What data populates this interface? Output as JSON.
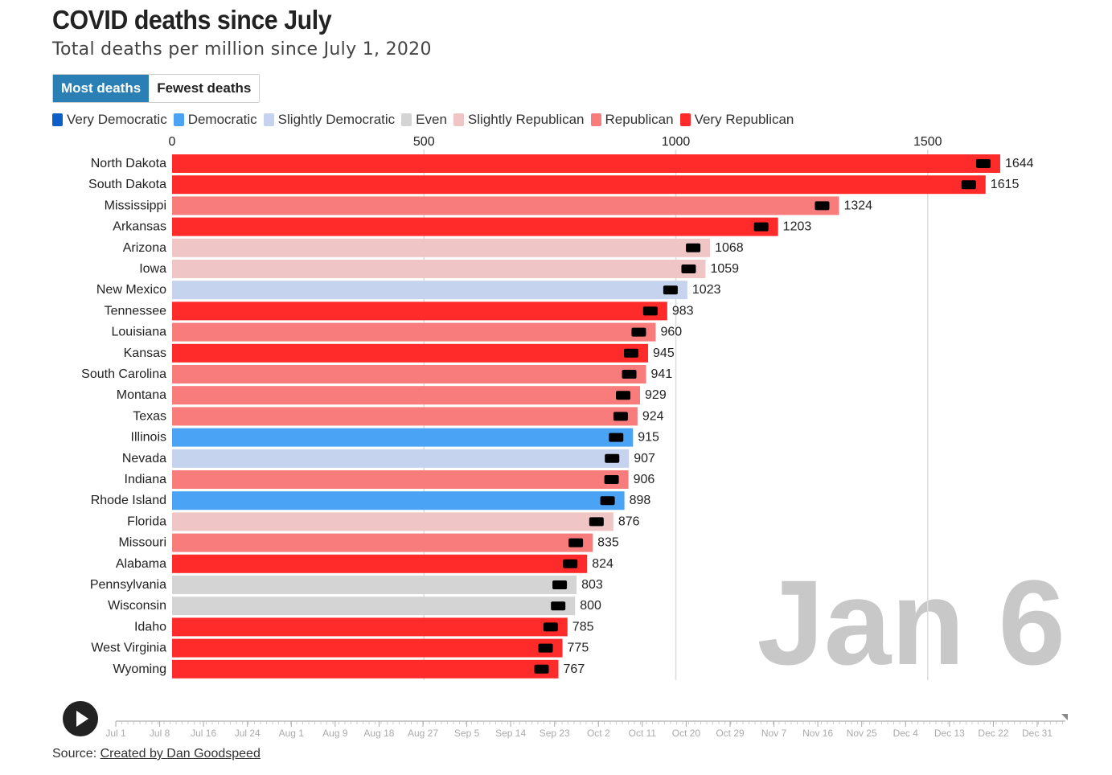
{
  "header": {
    "title": "COVID deaths since July",
    "subtitle": "Total deaths per million since July 1, 2020"
  },
  "toggle": {
    "most_label": "Most deaths",
    "fewest_label": "Fewest deaths",
    "active": "most"
  },
  "legend": [
    {
      "label": "Very Democratic",
      "color": "#0b5fc7"
    },
    {
      "label": "Democratic",
      "color": "#4aa3f5"
    },
    {
      "label": "Slightly Democratic",
      "color": "#c5d3ef"
    },
    {
      "label": "Even",
      "color": "#d4d4d4"
    },
    {
      "label": "Slightly Republican",
      "color": "#efc5c5"
    },
    {
      "label": "Republican",
      "color": "#f87c7c"
    },
    {
      "label": "Very Republican",
      "color": "#ff2a2a"
    }
  ],
  "chart_data": {
    "type": "bar",
    "orientation": "horizontal",
    "xlim": [
      0,
      1750
    ],
    "x_ticks": [
      0,
      500,
      1000,
      1500
    ],
    "grid": true,
    "date_label": "Jan 6",
    "categories": [
      "North Dakota",
      "South Dakota",
      "Mississippi",
      "Arkansas",
      "Arizona",
      "Iowa",
      "New Mexico",
      "Tennessee",
      "Louisiana",
      "Kansas",
      "South Carolina",
      "Montana",
      "Texas",
      "Illinois",
      "Nevada",
      "Indiana",
      "Rhode Island",
      "Florida",
      "Missouri",
      "Alabama",
      "Pennsylvania",
      "Wisconsin",
      "Idaho",
      "West Virginia",
      "Wyoming"
    ],
    "values": [
      1644,
      1615,
      1324,
      1203,
      1068,
      1059,
      1023,
      983,
      960,
      945,
      941,
      929,
      924,
      915,
      907,
      906,
      898,
      876,
      835,
      824,
      803,
      800,
      785,
      775,
      767
    ],
    "leaning": [
      "Very Republican",
      "Very Republican",
      "Republican",
      "Very Republican",
      "Slightly Republican",
      "Slightly Republican",
      "Slightly Democratic",
      "Very Republican",
      "Republican",
      "Very Republican",
      "Republican",
      "Republican",
      "Republican",
      "Democratic",
      "Slightly Democratic",
      "Republican",
      "Democratic",
      "Slightly Republican",
      "Republican",
      "Very Republican",
      "Even",
      "Even",
      "Very Republican",
      "Very Republican",
      "Very Republican"
    ]
  },
  "timeline": {
    "play_label": "play-button",
    "ticks": [
      "Jul 1",
      "Jul 8",
      "Jul 16",
      "Jul 24",
      "Aug 1",
      "Aug 9",
      "Aug 18",
      "Aug 27",
      "Sep 5",
      "Sep 14",
      "Sep 23",
      "Oct 2",
      "Oct 11",
      "Oct 20",
      "Oct 29",
      "Nov 7",
      "Nov 16",
      "Nov 25",
      "Dec 4",
      "Dec 13",
      "Dec 22",
      "Dec 31"
    ]
  },
  "footer": {
    "source_prefix": "Source: ",
    "source_link": "Created by Dan Goodspeed"
  }
}
